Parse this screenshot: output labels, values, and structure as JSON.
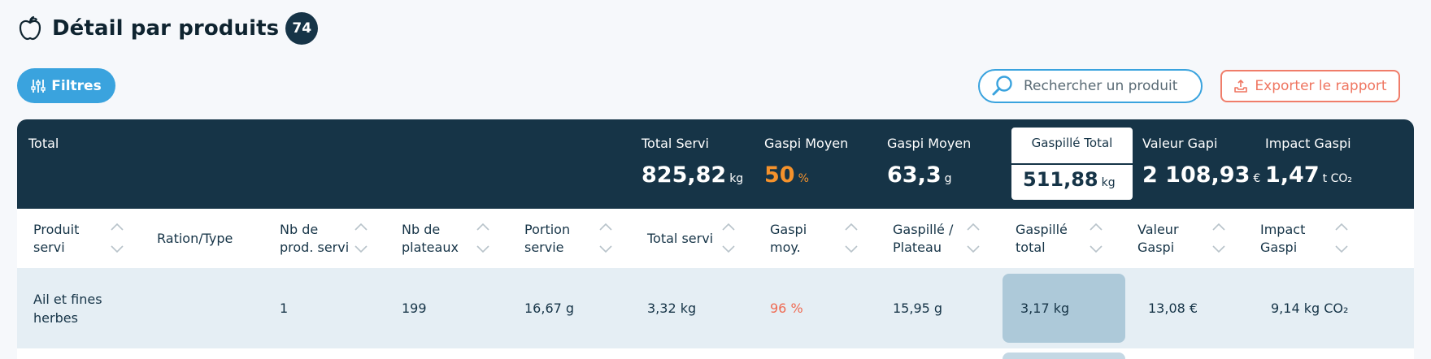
{
  "header": {
    "title": "Détail par produits",
    "count": "74"
  },
  "toolbar": {
    "filters_label": "Filtres",
    "search_placeholder": "Rechercher un produit",
    "export_label": "Exporter le rapport"
  },
  "totals": {
    "label": "Total",
    "total_servi": {
      "label": "Total Servi",
      "value": "825,82",
      "unit": "kg"
    },
    "gaspi_moyen_pct": {
      "label": "Gaspi Moyen",
      "value": "50",
      "unit": "%"
    },
    "gaspi_moyen_g": {
      "label": "Gaspi Moyen",
      "value": "63,3",
      "unit": "g"
    },
    "gaspille_total": {
      "label": "Gaspillé Total",
      "value": "511,88",
      "unit": "kg"
    },
    "valeur_gapi": {
      "label": "Valeur Gapi",
      "value": "2 108,93",
      "unit": "€"
    },
    "impact_gaspi": {
      "label": "Impact Gaspi",
      "value": "1,47",
      "unit": "t CO₂"
    }
  },
  "columns": [
    "Produit\nservi",
    "Ration/Type",
    "Nb de\nprod. servi",
    "Nb de\nplateaux",
    "Portion\nservie",
    "Total servi",
    "Gaspi\nmoy.",
    "Gaspillé /\nPlateau",
    "Gaspillé\ntotal",
    "Valeur\nGaspi",
    "Impact\nGaspi"
  ],
  "rows": [
    {
      "produit": "Ail et fines\nherbes",
      "ration": "",
      "nb_prod": "1",
      "nb_plateaux": "199",
      "portion": "16,67 g",
      "total_servi": "3,32 kg",
      "gaspi_moy": "96 %",
      "gaspille_plateau": "15,95 g",
      "gaspille_total": "3,17 kg",
      "valeur_gaspi": "13,08 €",
      "impact_gaspi": "9,14 kg CO₂"
    }
  ],
  "colors": {
    "navy": "#163447",
    "accent_blue": "#3aa3de",
    "export_red": "#ef7560",
    "highlight_orange": "#f5922c",
    "row_bg": "#e5eef4",
    "cell_highlight": "#adc9d9"
  },
  "icons": {
    "title_icon": "apple-icon",
    "filters_icon": "sliders-icon",
    "search_icon": "search-icon",
    "export_icon": "export-icon",
    "sort_icon": "sort-arrows-icon"
  }
}
